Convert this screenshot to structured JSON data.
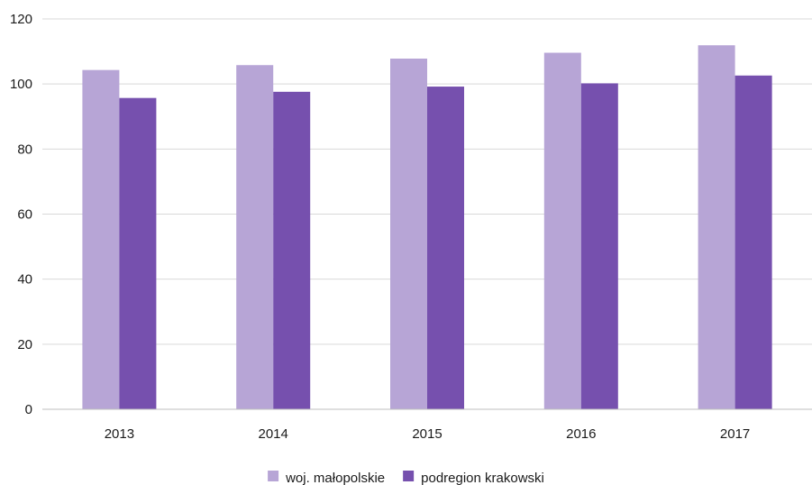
{
  "chart_data": {
    "type": "bar",
    "title": "",
    "xlabel": "",
    "ylabel": "",
    "categories": [
      "2013",
      "2014",
      "2015",
      "2016",
      "2017"
    ],
    "series": [
      {
        "name": "woj. małopolskie",
        "color": "#b7a5d6",
        "values": [
          104.3,
          105.8,
          107.8,
          109.6,
          111.9
        ]
      },
      {
        "name": "podregion krakowski",
        "color": "#7650ae",
        "values": [
          95.7,
          97.6,
          99.2,
          100.2,
          102.6
        ]
      }
    ],
    "ylim": [
      0,
      120
    ],
    "yticks": [
      "0",
      "20",
      "40",
      "60",
      "80",
      "100",
      "120"
    ],
    "grid": true,
    "legend_position": "bottom-center"
  }
}
